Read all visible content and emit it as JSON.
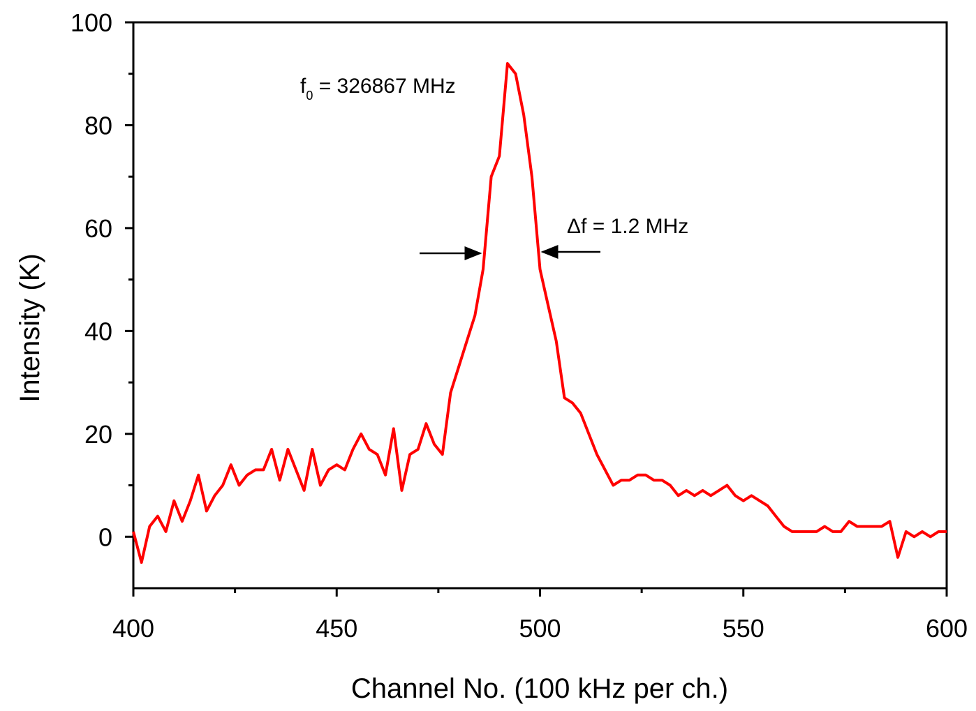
{
  "chart_data": {
    "type": "line",
    "xlabel": "Channel No. (100 kHz per ch.)",
    "ylabel": "Intensity (K)",
    "annotations": [
      {
        "text": "f",
        "subscript": "0",
        "rest": " = 326867 MHz"
      },
      {
        "text": "Δf = 1.2 MHz"
      }
    ],
    "x": [
      400,
      402,
      404,
      406,
      408,
      410,
      412,
      414,
      416,
      418,
      420,
      422,
      424,
      426,
      428,
      430,
      432,
      434,
      436,
      438,
      440,
      442,
      444,
      446,
      448,
      450,
      452,
      454,
      456,
      458,
      460,
      462,
      464,
      466,
      468,
      470,
      472,
      474,
      476,
      478,
      480,
      482,
      484,
      486,
      488,
      490,
      492,
      494,
      496,
      498,
      500,
      502,
      504,
      506,
      508,
      510,
      512,
      514,
      516,
      518,
      520,
      522,
      524,
      526,
      528,
      530,
      532,
      534,
      536,
      538,
      540,
      542,
      544,
      546,
      548,
      550,
      552,
      554,
      556,
      558,
      560,
      562,
      564,
      566,
      568,
      570,
      572,
      574,
      576,
      578,
      580,
      582,
      584,
      586,
      588,
      590,
      592,
      594,
      596,
      598,
      600
    ],
    "series": [
      {
        "color": "#ff0000",
        "values": [
          1,
          -5,
          2,
          4,
          1,
          7,
          3,
          7,
          12,
          5,
          8,
          10,
          14,
          10,
          12,
          13,
          13,
          17,
          11,
          17,
          13,
          9,
          17,
          10,
          13,
          14,
          13,
          17,
          20,
          17,
          16,
          12,
          21,
          9,
          16,
          17,
          22,
          18,
          16,
          28,
          33,
          38,
          43,
          52,
          70,
          74,
          92,
          90,
          82,
          70,
          52,
          45,
          38,
          27,
          26,
          24,
          20,
          16,
          13,
          10,
          11,
          11,
          12,
          12,
          11,
          11,
          10,
          8,
          9,
          8,
          9,
          8,
          9,
          10,
          8,
          7,
          8,
          7,
          6,
          4,
          2,
          1,
          1,
          1,
          1,
          2,
          1,
          1,
          3,
          2,
          2,
          2,
          2,
          3,
          -4,
          1,
          0,
          1,
          0,
          1,
          1
        ]
      }
    ],
    "xlim": [
      400,
      600
    ],
    "xticks": [
      400,
      450,
      500,
      550,
      600
    ],
    "x_minor_ticks": [
      425,
      475,
      525,
      575
    ],
    "ylim": [
      -10,
      100
    ],
    "yticks": [
      0,
      20,
      40,
      60,
      80,
      100
    ],
    "y_minor_ticks": [
      10,
      30,
      50,
      70,
      90
    ],
    "grid": false
  }
}
